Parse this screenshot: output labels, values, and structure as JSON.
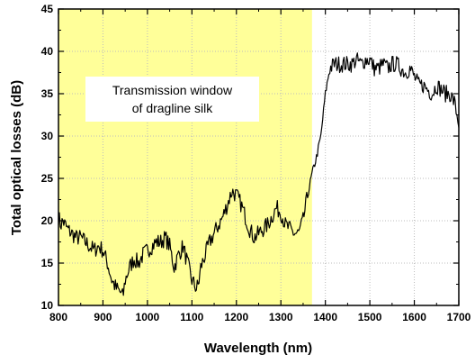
{
  "chart_data": {
    "type": "line",
    "title": "",
    "xlabel": "Wavelength (nm)",
    "ylabel": "Total optical losses (dB)",
    "xlim": [
      800,
      1700
    ],
    "ylim": [
      10,
      45
    ],
    "x_ticks": [
      800,
      900,
      1000,
      1100,
      1200,
      1300,
      1400,
      1500,
      1600,
      1700
    ],
    "y_ticks": [
      10,
      15,
      20,
      25,
      30,
      35,
      40,
      45
    ],
    "grid": true,
    "legend": "none",
    "highlight_region": {
      "x_start": 800,
      "x_end": 1370,
      "color": "#ffff99"
    },
    "annotation": {
      "lines": [
        "Transmission window",
        "of dragline silk"
      ]
    },
    "series": [
      {
        "color": "#000000",
        "x": [
          800,
          805,
          810,
          820,
          830,
          840,
          850,
          860,
          870,
          880,
          890,
          900,
          910,
          920,
          930,
          940,
          945,
          950,
          960,
          970,
          980,
          990,
          1000,
          1010,
          1020,
          1030,
          1040,
          1050,
          1060,
          1070,
          1080,
          1090,
          1100,
          1110,
          1115,
          1120,
          1130,
          1140,
          1150,
          1160,
          1170,
          1180,
          1190,
          1200,
          1210,
          1220,
          1230,
          1240,
          1250,
          1260,
          1270,
          1280,
          1290,
          1300,
          1310,
          1320,
          1330,
          1340,
          1350,
          1360,
          1370,
          1380,
          1390,
          1400,
          1410,
          1420,
          1430,
          1440,
          1450,
          1460,
          1470,
          1480,
          1490,
          1500,
          1510,
          1520,
          1530,
          1540,
          1550,
          1560,
          1570,
          1580,
          1590,
          1600,
          1610,
          1620,
          1630,
          1640,
          1650,
          1660,
          1670,
          1680,
          1690,
          1700
        ],
        "y": [
          20.5,
          19.5,
          20,
          19,
          18.5,
          18,
          18,
          17.5,
          17,
          16.5,
          17,
          16.5,
          15,
          13,
          12,
          11.5,
          11,
          13,
          14.5,
          15.5,
          15,
          16,
          16.5,
          17,
          17.5,
          17.5,
          18,
          17,
          14.5,
          16,
          17,
          15,
          13,
          12,
          12.5,
          14.5,
          16,
          17.5,
          18.5,
          19.5,
          20.5,
          22,
          23.5,
          23,
          22,
          20.5,
          19,
          18,
          18.5,
          19,
          19.5,
          20.5,
          21.5,
          21,
          19.5,
          19,
          18.5,
          18.5,
          20,
          23,
          25.5,
          27.5,
          30,
          35,
          38,
          38.5,
          38.5,
          38.5,
          38.5,
          38.5,
          39,
          38.5,
          39,
          39,
          38,
          38,
          38.5,
          38,
          38.5,
          38.5,
          38,
          37.5,
          38,
          37,
          36,
          36,
          35.5,
          35,
          36,
          35.5,
          35,
          35,
          34,
          31.5
        ]
      }
    ]
  }
}
